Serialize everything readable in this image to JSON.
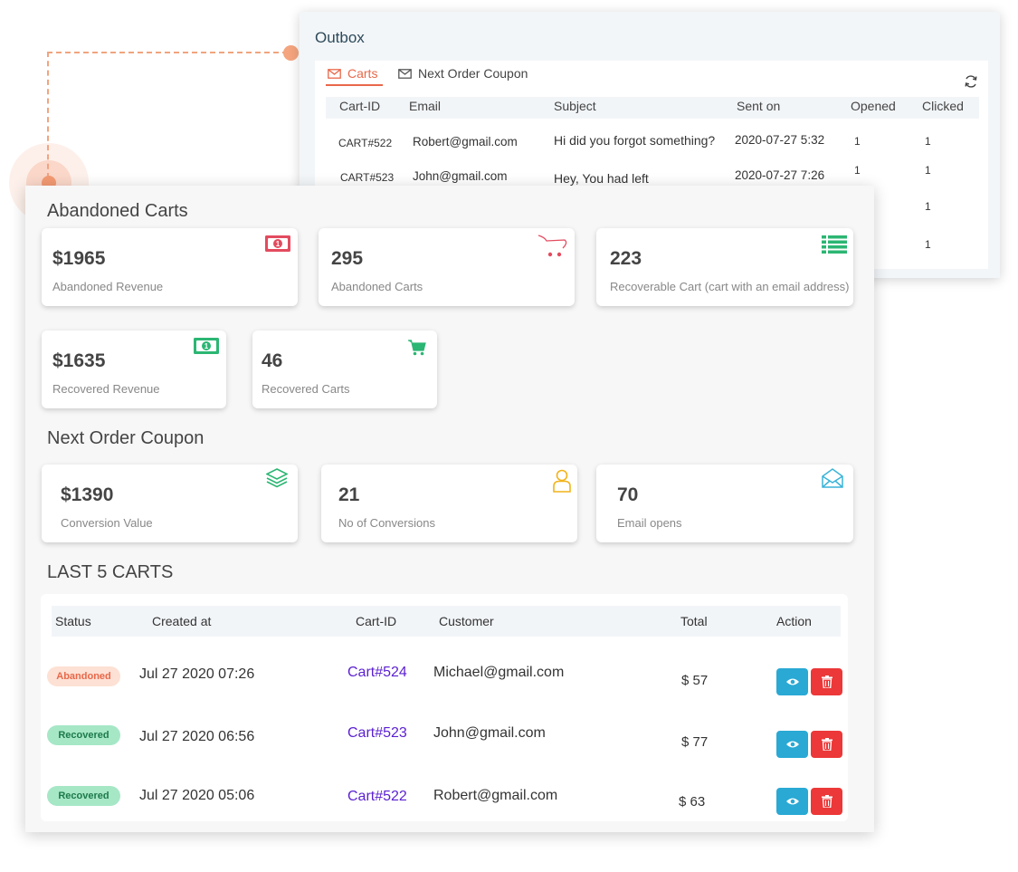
{
  "outbox": {
    "title": "Outbox",
    "tabs": [
      {
        "label": "Carts",
        "icon": "envelope-icon",
        "active": true
      },
      {
        "label": "Next Order Coupon",
        "icon": "envelope-icon",
        "active": false
      }
    ],
    "columns": [
      "Cart-ID",
      "Email",
      "Subject",
      "Sent on",
      "Opened",
      "Clicked"
    ],
    "rows": [
      {
        "cart_id": "CART#522",
        "email": "Robert@gmail.com",
        "subject": "Hi did you forgot something?",
        "sent_on": "2020-07-27 5:32",
        "opened": "1",
        "clicked": "1"
      },
      {
        "cart_id": "CART#523",
        "email": "John@gmail.com",
        "subject": "Hey, You had left",
        "sent_on": "2020-07-27 7:26",
        "opened": "1",
        "clicked": "1"
      },
      {
        "opened": "",
        "clicked": "1"
      },
      {
        "opened": "",
        "clicked": "1"
      }
    ]
  },
  "abandoned_carts": {
    "title": "Abandoned Carts",
    "cards": [
      {
        "value": "$1965",
        "label": "Abandoned Revenue",
        "icon": "cash-icon",
        "icon_color": "#e34b5f"
      },
      {
        "value": "295",
        "label": "Abandoned Carts",
        "icon": "cart-icon",
        "icon_color": "#e34b5f"
      },
      {
        "value": "223",
        "label": "Recoverable Cart (cart with an email address)",
        "icon": "list-icon",
        "icon_color": "#2bb673"
      },
      {
        "value": "$1635",
        "label": "Recovered Revenue",
        "icon": "cash-icon",
        "icon_color": "#2bb673"
      },
      {
        "value": "46",
        "label": "Recovered Carts",
        "icon": "cart-icon",
        "icon_color": "#2bb673"
      }
    ]
  },
  "next_order_coupon": {
    "title": "Next Order Coupon",
    "cards": [
      {
        "value": "$1390",
        "label": "Conversion Value",
        "icon": "layers-icon",
        "icon_color": "#2bb673"
      },
      {
        "value": "21",
        "label": "No of Conversions",
        "icon": "user-icon",
        "icon_color": "#f2b31b"
      },
      {
        "value": "70",
        "label": "Email opens",
        "icon": "open-envelope-icon",
        "icon_color": "#3ab4d8"
      }
    ]
  },
  "last_carts": {
    "title": "LAST 5 CARTS",
    "columns": [
      "Status",
      "Created at",
      "Cart-ID",
      "Customer",
      "Total",
      "Action"
    ],
    "rows": [
      {
        "status": "Abandoned",
        "created_at": "Jul 27 2020 07:26",
        "cart_id": "Cart#524",
        "customer": "Michael@gmail.com",
        "total": "$ 57"
      },
      {
        "status": "Recovered",
        "created_at": "Jul 27 2020 06:56",
        "cart_id": "Cart#523",
        "customer": "John@gmail.com",
        "total": "$ 77"
      },
      {
        "status": "Recovered",
        "created_at": "Jul 27 2020 05:06",
        "cart_id": "Cart#522",
        "customer": "Robert@gmail.com",
        "total": "$ 63"
      }
    ],
    "actions": [
      {
        "icon": "eye-icon",
        "color": "#29a9d4"
      },
      {
        "icon": "trash-icon",
        "color": "#ec3838"
      }
    ]
  },
  "colors": {
    "accent": "#e8684a",
    "connector": "#f0a47f",
    "link": "#5a1fd1"
  }
}
